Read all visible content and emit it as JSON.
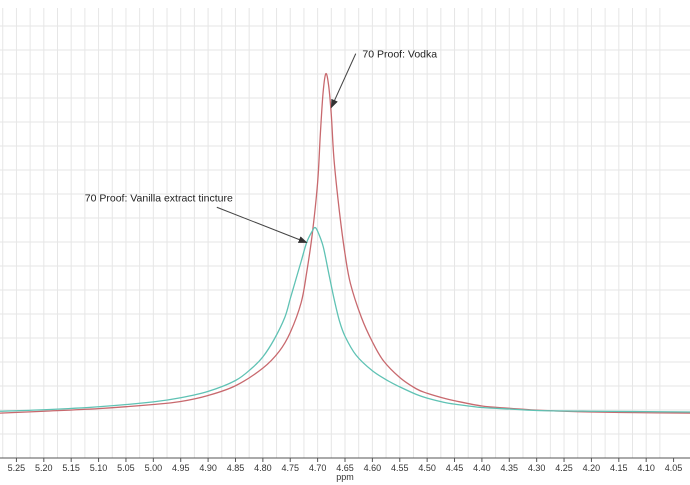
{
  "chart_data": {
    "type": "line",
    "title": "",
    "xlabel": "ppm",
    "ylabel": "",
    "x_reversed": true,
    "xlim": [
      5.28,
      4.02
    ],
    "ylim": [
      0,
      100
    ],
    "grid": true,
    "legend": "none",
    "x_ticks": [
      "5.25",
      "5.20",
      "5.15",
      "5.10",
      "5.05",
      "5.00",
      "4.95",
      "4.90",
      "4.85",
      "4.80",
      "4.75",
      "4.70",
      "4.65",
      "4.60",
      "4.55",
      "4.50",
      "4.45",
      "4.40",
      "4.35",
      "4.30",
      "4.25",
      "4.20",
      "4.15",
      "4.10",
      "4.05"
    ],
    "series": [
      {
        "color": "#c8696e",
        "x": [
          5.28,
          5.2,
          5.1,
          5.0,
          4.95,
          4.9,
          4.85,
          4.8,
          4.77,
          4.75,
          4.73,
          4.72,
          4.71,
          4.7,
          4.695,
          4.69,
          4.685,
          4.68,
          4.675,
          4.67,
          4.66,
          4.65,
          4.64,
          4.62,
          4.6,
          4.58,
          4.55,
          4.52,
          4.5,
          4.47,
          4.45,
          4.4,
          4.35,
          4.3,
          4.25,
          4.2,
          4.1,
          4.02
        ],
        "y": [
          0.5,
          1.0,
          1.7,
          2.8,
          3.6,
          5.2,
          7.8,
          12.5,
          17,
          22,
          30,
          38,
          48,
          62,
          75,
          86,
          91,
          88,
          80,
          68,
          54,
          43,
          35,
          26,
          19.5,
          14.5,
          10,
          7,
          5.8,
          4.5,
          3.8,
          2.4,
          1.8,
          1.3,
          1.0,
          0.8,
          0.6,
          0.5
        ]
      },
      {
        "color": "#5fc2b4",
        "x": [
          5.28,
          5.2,
          5.1,
          5.0,
          4.95,
          4.9,
          4.85,
          4.82,
          4.8,
          4.78,
          4.76,
          4.75,
          4.74,
          4.73,
          4.72,
          4.71,
          4.705,
          4.7,
          4.69,
          4.68,
          4.67,
          4.66,
          4.65,
          4.63,
          4.6,
          4.57,
          4.55,
          4.52,
          4.5,
          4.47,
          4.45,
          4.4,
          4.35,
          4.3,
          4.2,
          4.1,
          4.02
        ],
        "y": [
          1.0,
          1.4,
          2.2,
          3.5,
          4.6,
          6.3,
          9.2,
          12.5,
          15.5,
          20,
          26,
          31,
          36,
          41,
          46,
          49,
          50,
          49,
          45,
          38,
          31,
          25,
          21,
          16,
          11.8,
          9.0,
          7.5,
          5.5,
          4.5,
          3.4,
          2.9,
          2.0,
          1.6,
          1.2,
          1.0,
          0.9,
          0.8
        ]
      }
    ],
    "annotations": [
      {
        "text": "70 Proof: Vodka",
        "x": 4.55,
        "y": 95.3,
        "arrow_to": [
          4.675,
          82
        ]
      },
      {
        "text": "70 Proof: Vanilla extract tincture",
        "x": 4.99,
        "y": 57,
        "arrow_to": [
          4.72,
          46
        ]
      }
    ]
  }
}
